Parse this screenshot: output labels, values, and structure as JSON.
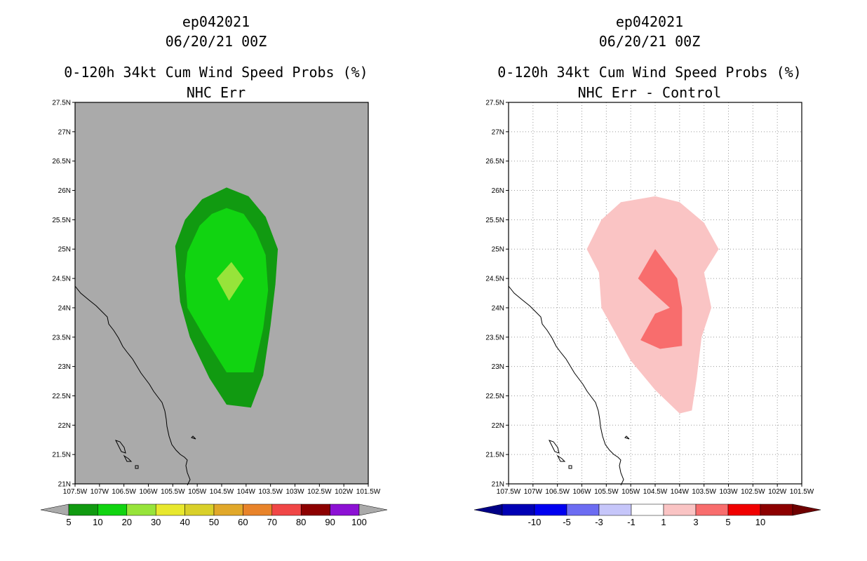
{
  "chart_data": [
    {
      "type": "contour-map",
      "panel": "left",
      "title_lines": [
        "ep042021",
        "06/20/21 00Z",
        "0-120h 34kt Cum Wind Speed Probs (%)",
        "NHC Err"
      ],
      "xlim": [
        -107.5,
        -101.5
      ],
      "ylim": [
        21,
        27.5
      ],
      "xticks": [
        "107.5W",
        "107W",
        "106.5W",
        "106W",
        "105.5W",
        "105W",
        "104.5W",
        "104W",
        "103.5W",
        "103W",
        "102.5W",
        "102W",
        "101.5W"
      ],
      "yticks": [
        "21N",
        "21.5N",
        "22N",
        "22.5N",
        "23N",
        "23.5N",
        "24N",
        "24.5N",
        "25N",
        "25.5N",
        "26N",
        "26.5N",
        "27N",
        "27.5N"
      ],
      "background_color": "#aaaaaa",
      "grid": false,
      "contours": [
        {
          "level": "5-10",
          "color": "#119a11",
          "lonlat": [
            [
              -104.4,
              26.05
            ],
            [
              -103.95,
              25.9
            ],
            [
              -103.6,
              25.55
            ],
            [
              -103.35,
              25.0
            ],
            [
              -103.4,
              24.4
            ],
            [
              -103.5,
              23.7
            ],
            [
              -103.65,
              22.85
            ],
            [
              -103.9,
              22.3
            ],
            [
              -104.4,
              22.35
            ],
            [
              -104.75,
              22.8
            ],
            [
              -105.15,
              23.5
            ],
            [
              -105.35,
              24.1
            ],
            [
              -105.4,
              24.55
            ],
            [
              -105.45,
              25.05
            ],
            [
              -105.25,
              25.5
            ],
            [
              -104.9,
              25.85
            ]
          ]
        },
        {
          "level": "10-20",
          "color": "#11d411",
          "lonlat": [
            [
              -104.4,
              25.7
            ],
            [
              -104.05,
              25.6
            ],
            [
              -103.8,
              25.3
            ],
            [
              -103.6,
              24.9
            ],
            [
              -103.55,
              24.3
            ],
            [
              -103.65,
              23.65
            ],
            [
              -103.85,
              22.9
            ],
            [
              -104.4,
              22.9
            ],
            [
              -104.85,
              23.5
            ],
            [
              -105.2,
              24.0
            ],
            [
              -105.25,
              24.55
            ],
            [
              -105.2,
              24.95
            ],
            [
              -104.95,
              25.4
            ],
            [
              -104.7,
              25.6
            ]
          ]
        },
        {
          "level": "20-30",
          "color": "#97e43a",
          "lonlat": [
            [
              -104.3,
              24.78
            ],
            [
              -104.05,
              24.5
            ],
            [
              -104.35,
              24.12
            ],
            [
              -104.6,
              24.5
            ]
          ]
        }
      ],
      "colorbar": {
        "labels": [
          "5",
          "10",
          "20",
          "30",
          "40",
          "50",
          "60",
          "70",
          "80",
          "90",
          "100"
        ],
        "colors": [
          "#119a11",
          "#11d411",
          "#97e43a",
          "#e8e82e",
          "#d9d02a",
          "#e1a82a",
          "#e8832a",
          "#f04646",
          "#8c0000",
          "#8c11d4"
        ],
        "under_color": "#aaaaaa",
        "over_color": "#aaaaaa"
      }
    },
    {
      "type": "contour-map",
      "panel": "right",
      "title_lines": [
        "ep042021",
        "06/20/21 00Z",
        "0-120h 34kt Cum Wind Speed Probs (%)",
        "NHC Err - Control"
      ],
      "xlim": [
        -107.5,
        -101.5
      ],
      "ylim": [
        21,
        27.5
      ],
      "xticks": [
        "107.5W",
        "107W",
        "106.5W",
        "106W",
        "105.5W",
        "105W",
        "104.5W",
        "104W",
        "103.5W",
        "103W",
        "102.5W",
        "102W",
        "101.5W"
      ],
      "yticks": [
        "21N",
        "21.5N",
        "22N",
        "22.5N",
        "23N",
        "23.5N",
        "24N",
        "24.5N",
        "25N",
        "25.5N",
        "26N",
        "26.5N",
        "27N",
        "27.5N"
      ],
      "background_color": "#ffffff",
      "grid": true,
      "contours": [
        {
          "level": "1-3",
          "color": "#fac4c4",
          "lonlat": [
            [
              -104.5,
              25.9
            ],
            [
              -104.0,
              25.8
            ],
            [
              -103.5,
              25.45
            ],
            [
              -103.2,
              25.0
            ],
            [
              -103.5,
              24.6
            ],
            [
              -103.35,
              24.0
            ],
            [
              -103.55,
              23.5
            ],
            [
              -103.65,
              22.8
            ],
            [
              -103.75,
              22.25
            ],
            [
              -104.0,
              22.2
            ],
            [
              -104.5,
              22.6
            ],
            [
              -105.0,
              23.1
            ],
            [
              -105.4,
              23.7
            ],
            [
              -105.6,
              24.0
            ],
            [
              -105.65,
              24.6
            ],
            [
              -105.9,
              25.0
            ],
            [
              -105.6,
              25.5
            ],
            [
              -105.2,
              25.8
            ]
          ]
        },
        {
          "level": "3-5",
          "color": "#f86d6d",
          "lonlat": [
            [
              -104.5,
              25.0
            ],
            [
              -104.05,
              24.5
            ],
            [
              -103.95,
              24.0
            ],
            [
              -103.95,
              23.35
            ],
            [
              -104.4,
              23.3
            ],
            [
              -104.8,
              23.45
            ],
            [
              -104.5,
              23.9
            ],
            [
              -104.2,
              24.0
            ],
            [
              -104.6,
              24.3
            ],
            [
              -104.85,
              24.5
            ]
          ]
        }
      ],
      "colorbar": {
        "labels": [
          "-10",
          "-5",
          "-3",
          "-1",
          "1",
          "3",
          "5",
          "10"
        ],
        "colors": [
          "#0000b4",
          "#0000f0",
          "#6c6cf2",
          "#c6c6fa",
          "#ffffff",
          "#fac4c4",
          "#f86d6d",
          "#f00000",
          "#8c0000"
        ],
        "under_color": "#000086",
        "over_color": "#6e0000"
      }
    }
  ]
}
